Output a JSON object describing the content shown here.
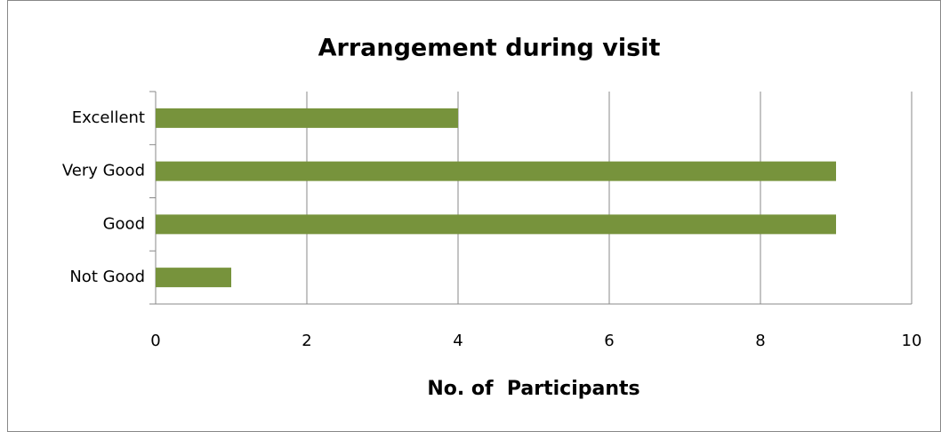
{
  "chart_data": {
    "type": "barh",
    "title": "Arrangement during visit",
    "xlabel": "No. of  Participants",
    "categories": [
      "Excellent",
      "Very Good",
      "Good",
      "Not Good"
    ],
    "values": [
      4,
      9,
      9,
      1
    ],
    "color": "#77933c",
    "xlim": [
      0,
      10
    ],
    "xticks": [
      0,
      2,
      4,
      6,
      8,
      10
    ],
    "grid": true
  }
}
